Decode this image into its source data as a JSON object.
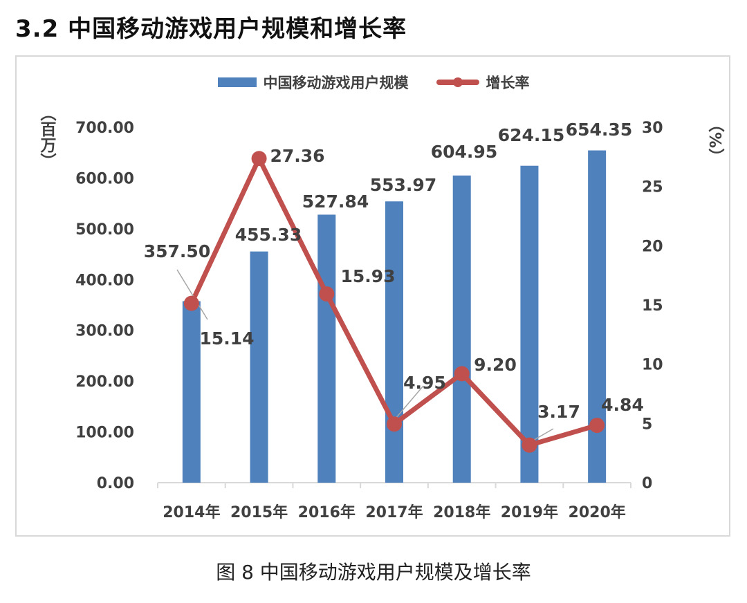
{
  "heading": "3.2 中国移动游戏用户规模和增长率",
  "caption": "图 8  中国移动游戏用户规模及增长率",
  "colors": {
    "bar": "#4f81bd",
    "line": "#c0504d",
    "text": "#404040",
    "axis": "#d9d9d9"
  },
  "chart_data": {
    "type": "bar",
    "categories": [
      "2014年",
      "2015年",
      "2016年",
      "2017年",
      "2018年",
      "2019年",
      "2020年"
    ],
    "series": [
      {
        "name": "中国移动游戏用户规模",
        "type": "bar",
        "axis": "left",
        "values": [
          357.5,
          455.33,
          527.84,
          553.97,
          604.95,
          624.15,
          654.35
        ],
        "labels": [
          "357.50",
          "455.33",
          "527.84",
          "553.97",
          "604.95",
          "624.15",
          "654.35"
        ]
      },
      {
        "name": "增长率",
        "type": "line",
        "axis": "right",
        "values": [
          15.14,
          27.36,
          15.93,
          4.95,
          9.2,
          3.17,
          4.84
        ],
        "labels": [
          "15.14",
          "27.36",
          "15.93",
          "4.95",
          "9.20",
          "3.17",
          "4.84"
        ]
      }
    ],
    "y_left": {
      "label": "（百万）",
      "range": [
        0,
        700
      ],
      "ticks": [
        "0.00",
        "100.00",
        "200.00",
        "300.00",
        "400.00",
        "500.00",
        "600.00",
        "700.00"
      ]
    },
    "y_right": {
      "label": "（%）",
      "range": [
        0,
        30
      ],
      "ticks": [
        "0",
        "5",
        "10",
        "15",
        "20",
        "25",
        "30"
      ]
    },
    "legend_position": "top-center",
    "grid": false
  }
}
